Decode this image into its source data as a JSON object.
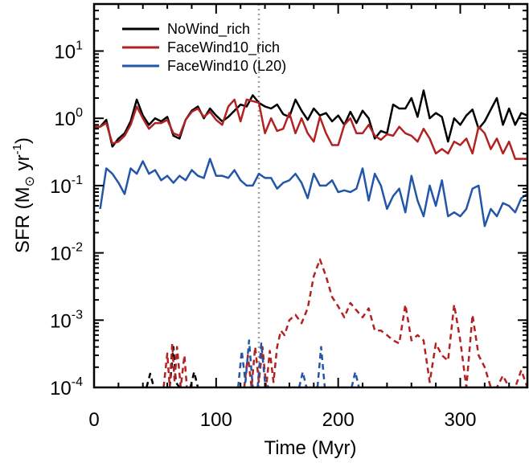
{
  "chart_data": {
    "type": "line",
    "xlabel": "Time (Myr)",
    "ylabel": {
      "prefix": "SFR (M",
      "sun": "⊙",
      "mid": " yr",
      "sup": "-1",
      "suffix": ")"
    },
    "xlim": [
      0,
      355
    ],
    "ylim": [
      0.0001,
      50
    ],
    "yscale": "log",
    "x_ticks": [
      0,
      100,
      200,
      300
    ],
    "y_ticks": [
      {
        "value": 0.0001,
        "base": "10",
        "exp": "-4"
      },
      {
        "value": 0.001,
        "base": "10",
        "exp": "-3"
      },
      {
        "value": 0.01,
        "base": "10",
        "exp": "-2"
      },
      {
        "value": 0.1,
        "base": "10",
        "exp": "-1"
      },
      {
        "value": 1,
        "base": "10",
        "exp": "0"
      },
      {
        "value": 10,
        "base": "10",
        "exp": "1"
      }
    ],
    "vline": {
      "x": 135,
      "style": "dotted",
      "color": "#a0a0a0"
    },
    "legend_position": "top-left",
    "series": [
      {
        "name": "NoWind_rich",
        "color": "#000000",
        "style": "solid",
        "x": [
          0,
          5,
          10,
          15,
          20,
          25,
          30,
          35,
          40,
          45,
          50,
          55,
          60,
          65,
          70,
          75,
          80,
          85,
          90,
          95,
          100,
          105,
          110,
          115,
          120,
          125,
          130,
          135,
          140,
          145,
          150,
          155,
          160,
          165,
          170,
          175,
          180,
          185,
          190,
          195,
          200,
          205,
          210,
          215,
          220,
          225,
          230,
          235,
          240,
          245,
          250,
          255,
          260,
          265,
          270,
          275,
          280,
          285,
          290,
          295,
          300,
          305,
          310,
          315,
          320,
          325,
          330,
          335,
          340,
          345,
          350,
          355
        ],
        "y": [
          0.72,
          0.75,
          0.95,
          0.38,
          0.5,
          0.6,
          0.9,
          1.9,
          1.1,
          0.8,
          1.0,
          0.9,
          1.05,
          0.55,
          0.5,
          0.95,
          1.3,
          1.5,
          1.0,
          1.4,
          1.1,
          0.9,
          1.05,
          1.3,
          1.6,
          1.5,
          2.2,
          1.7,
          1.5,
          1.4,
          1.6,
          1.15,
          1.05,
          1.9,
          1.3,
          0.95,
          1.4,
          1.1,
          1.2,
          0.9,
          1.1,
          0.8,
          1.25,
          0.85,
          1.3,
          1.0,
          0.5,
          0.65,
          0.6,
          1.6,
          1.4,
          1.4,
          2.0,
          1.05,
          2.6,
          1.0,
          1.2,
          1.05,
          0.45,
          1.0,
          0.8,
          1.1,
          1.35,
          0.7,
          0.9,
          1.35,
          2.0,
          0.8,
          1.4,
          0.8,
          1.2,
          1.1
        ]
      },
      {
        "name": "FaceWind10_rich",
        "color": "#b22222",
        "style": "solid",
        "x": [
          0,
          5,
          10,
          15,
          20,
          25,
          30,
          35,
          40,
          45,
          50,
          55,
          60,
          65,
          70,
          75,
          80,
          85,
          90,
          95,
          100,
          105,
          110,
          115,
          120,
          125,
          130,
          135,
          140,
          145,
          150,
          155,
          160,
          165,
          170,
          175,
          180,
          185,
          190,
          195,
          200,
          205,
          210,
          215,
          220,
          225,
          230,
          235,
          240,
          245,
          250,
          255,
          260,
          265,
          270,
          275,
          280,
          285,
          290,
          295,
          300,
          305,
          310,
          315,
          320,
          325,
          330,
          335,
          340,
          345,
          350,
          355
        ],
        "y": [
          0.75,
          0.75,
          0.85,
          0.42,
          0.45,
          0.55,
          0.8,
          1.5,
          1.0,
          0.7,
          0.85,
          0.85,
          0.95,
          0.6,
          0.55,
          0.95,
          1.25,
          1.4,
          1.05,
          1.25,
          0.95,
          0.8,
          1.5,
          1.9,
          0.9,
          1.9,
          1.8,
          1.7,
          0.6,
          1.0,
          0.65,
          0.7,
          1.2,
          0.6,
          1.0,
          0.6,
          0.45,
          1.05,
          0.6,
          0.4,
          0.4,
          0.8,
          1.0,
          0.6,
          0.6,
          0.8,
          0.55,
          0.48,
          0.58,
          0.55,
          0.75,
          0.6,
          0.55,
          0.45,
          0.7,
          0.5,
          0.3,
          0.35,
          0.3,
          0.45,
          0.4,
          0.5,
          0.3,
          0.75,
          0.6,
          0.35,
          0.5,
          0.3,
          0.45,
          0.25,
          0.25,
          0.25
        ]
      },
      {
        "name": "FaceWind10 (L20)",
        "color": "#2356a8",
        "style": "solid",
        "x": [
          5,
          10,
          15,
          20,
          25,
          30,
          35,
          40,
          45,
          50,
          55,
          60,
          65,
          70,
          75,
          80,
          85,
          90,
          95,
          100,
          105,
          110,
          115,
          120,
          125,
          130,
          135,
          140,
          145,
          150,
          155,
          160,
          165,
          170,
          175,
          180,
          185,
          190,
          195,
          200,
          205,
          210,
          215,
          220,
          225,
          230,
          235,
          240,
          245,
          250,
          255,
          260,
          265,
          270,
          275,
          280,
          285,
          290,
          295,
          300,
          305,
          310,
          315,
          320,
          325,
          330,
          335,
          340,
          345,
          350,
          355
        ],
        "y": [
          0.045,
          0.18,
          0.15,
          0.11,
          0.075,
          0.18,
          0.15,
          0.23,
          0.15,
          0.17,
          0.12,
          0.14,
          0.11,
          0.14,
          0.12,
          0.17,
          0.14,
          0.13,
          0.25,
          0.14,
          0.14,
          0.13,
          0.17,
          0.12,
          0.1,
          0.1,
          0.15,
          0.13,
          0.13,
          0.09,
          0.11,
          0.12,
          0.15,
          0.11,
          0.065,
          0.15,
          0.1,
          0.1,
          0.12,
          0.08,
          0.085,
          0.08,
          0.09,
          0.18,
          0.06,
          0.15,
          0.1,
          0.045,
          0.07,
          0.09,
          0.04,
          0.14,
          0.06,
          0.035,
          0.1,
          0.05,
          0.12,
          0.035,
          0.04,
          0.035,
          0.045,
          0.09,
          0.1,
          0.025,
          0.045,
          0.035,
          0.055,
          0.05,
          0.04,
          0.065,
          0.075
        ]
      }
    ],
    "dashed_series": [
      {
        "name": "NoWind_rich (dashed)",
        "color": "#000000",
        "style": "dashed",
        "segments": [
          {
            "x": [
              43,
              46,
              49
            ],
            "y": [
              0.0001,
              0.00016,
              0.0001
            ]
          },
          {
            "x": [
              62,
              65,
              67,
              70
            ],
            "y": [
              0.0001,
              0.0004,
              0.00012,
              0.0001
            ]
          },
          {
            "x": [
              79,
              82,
              85
            ],
            "y": [
              0.0001,
              0.00017,
              0.0001
            ]
          }
        ]
      },
      {
        "name": "FaceWind10_rich (dashed)",
        "color": "#b22222",
        "style": "dashed",
        "segments": [
          {
            "x": [
              57,
              60,
              62,
              64,
              66,
              68,
              71,
              74,
              76
            ],
            "y": [
              0.0001,
              0.00032,
              0.0001,
              0.00045,
              0.00012,
              0.0004,
              0.0001,
              0.0003,
              0.0001
            ]
          },
          {
            "x": [
              123,
              126,
              129,
              132,
              135,
              138,
              141,
              144,
              147,
              150,
              153,
              156,
              160,
              165,
              170,
              175,
              180,
              185,
              190,
              195,
              200,
              205,
              210,
              215,
              220,
              225,
              230,
              235,
              240,
              245,
              250,
              255,
              260,
              265,
              270,
              275,
              280,
              285,
              290,
              295,
              300,
              305,
              310,
              315,
              320,
              325,
              330,
              335,
              340,
              345,
              350,
              355
            ],
            "y": [
              0.0001,
              0.0003,
              0.0001,
              0.0004,
              0.00012,
              0.0004,
              0.0001,
              0.00035,
              0.00012,
              0.0004,
              0.0007,
              0.0006,
              0.001,
              0.0012,
              0.0009,
              0.0015,
              0.0045,
              0.008,
              0.0045,
              0.0022,
              0.0016,
              0.0011,
              0.0018,
              0.0014,
              0.0011,
              0.0015,
              0.0007,
              0.0007,
              0.0006,
              0.0005,
              0.00045,
              0.0017,
              0.0005,
              0.0006,
              0.0005,
              0.00012,
              0.00045,
              0.0003,
              0.00025,
              0.0017,
              0.0005,
              0.0001,
              0.0012,
              0.0003,
              0.0002,
              0.0001,
              0.0001,
              0.00015,
              0.0001,
              0.0001,
              0.00018,
              0.0001
            ]
          }
        ]
      },
      {
        "name": "FaceWind10 (L20) (dashed)",
        "color": "#2356a8",
        "style": "dashed",
        "segments": [
          {
            "x": [
              118,
              121,
              124,
              127,
              130
            ],
            "y": [
              0.0001,
              0.00035,
              0.00012,
              0.0005,
              0.0001
            ]
          },
          {
            "x": [
              134,
              137,
              140,
              143
            ],
            "y": [
              0.0001,
              0.00045,
              0.00012,
              0.0001
            ]
          },
          {
            "x": [
              168,
              171,
              174
            ],
            "y": [
              0.0001,
              0.00017,
              0.0001
            ]
          },
          {
            "x": [
              183,
              186,
              189
            ],
            "y": [
              0.0001,
              0.0004,
              0.0001
            ]
          },
          {
            "x": [
              211,
              214,
              217
            ],
            "y": [
              0.0001,
              0.00017,
              0.0001
            ]
          }
        ]
      }
    ]
  }
}
